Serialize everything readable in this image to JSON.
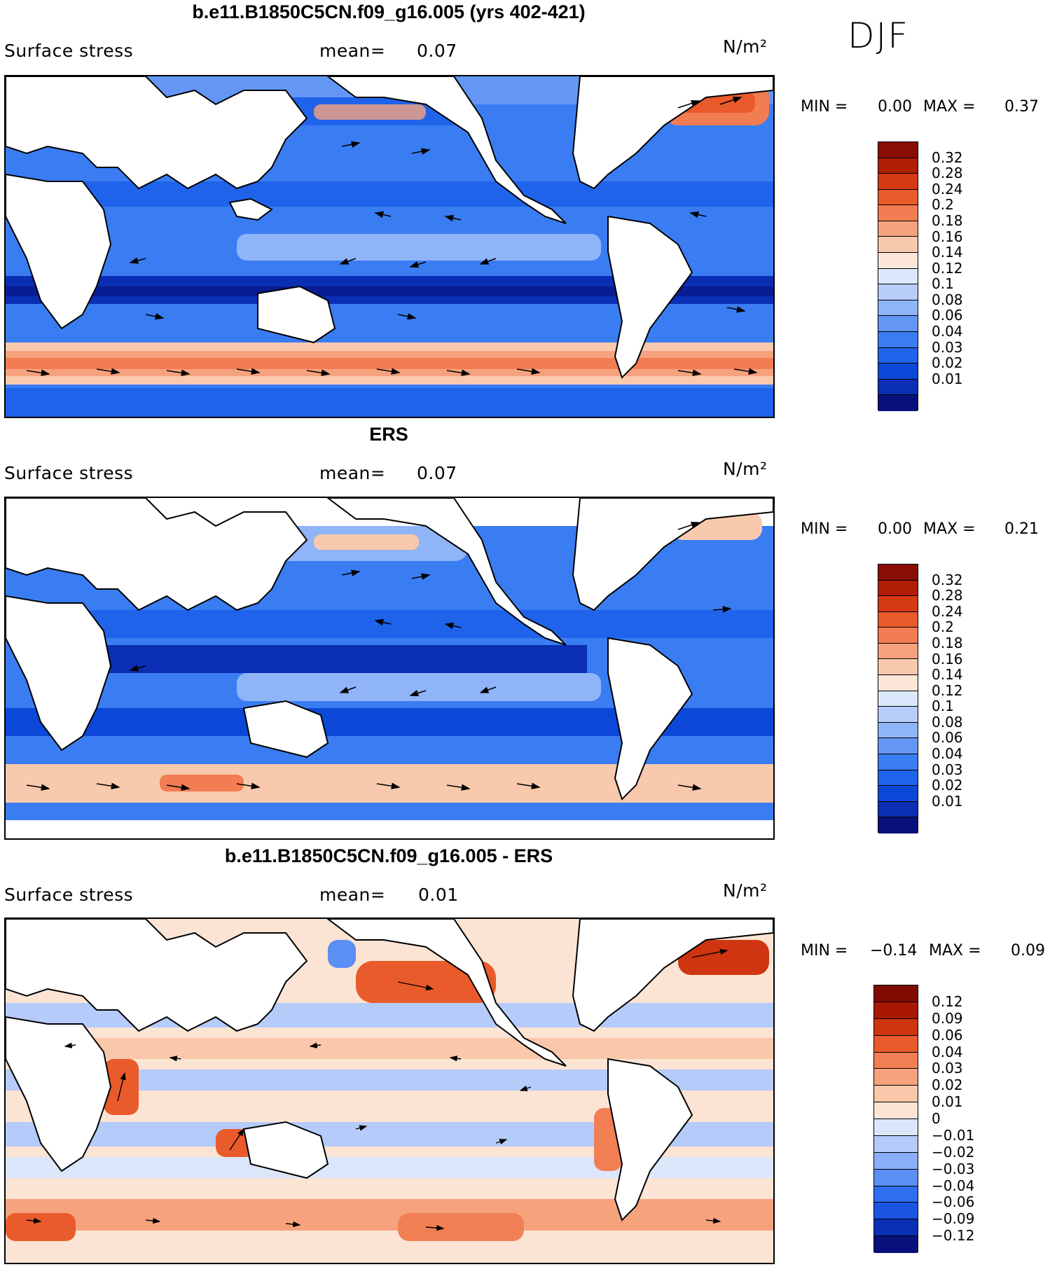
{
  "season": "DJF",
  "colors": {
    "abs_scale": [
      "#08107a",
      "#0a2fb5",
      "#0c48d8",
      "#1f63ea",
      "#3a7df2",
      "#6396f5",
      "#90b4f8",
      "#b8cdf9",
      "#dce8fb",
      "#fbe6d8",
      "#f9c9ad",
      "#f6a27e",
      "#f27d52",
      "#ea5a2a",
      "#d63a12",
      "#b21d06",
      "#8a0d03"
    ],
    "diff_scale": [
      "#08107a",
      "#0a2fb5",
      "#1b55e4",
      "#2f6ef0",
      "#5b8ff4",
      "#8aaef7",
      "#b5cbf9",
      "#dbe6fb",
      "#fbe4d3",
      "#f9c7a9",
      "#f6a37d",
      "#f27f54",
      "#ea5b2b",
      "#cf3510",
      "#a81804",
      "#7f0b02"
    ],
    "land": "#ffffff"
  },
  "panels": [
    {
      "title": "b.e11.B1850C5CN.f09_g16.005 (yrs 402-421)",
      "variable": "Surface stress",
      "mean_label": "mean=",
      "mean": "0.07",
      "units": "N/m²",
      "min_label": "MIN =",
      "min": "0.00",
      "max_label": "MAX =",
      "max": "0.37",
      "scale": "abs"
    },
    {
      "title": "ERS",
      "variable": "Surface stress",
      "mean_label": "mean=",
      "mean": "0.07",
      "units": "N/m²",
      "min_label": "MIN =",
      "min": "0.00",
      "max_label": "MAX =",
      "max": "0.21",
      "scale": "abs"
    },
    {
      "title": "b.e11.B1850C5CN.f09_g16.005 - ERS",
      "variable": "Surface stress",
      "mean_label": "mean=",
      "mean": "0.01",
      "units": "N/m²",
      "min_label": "MIN =",
      "min": "−0.14",
      "max_label": "MAX =",
      "max": "0.09",
      "scale": "diff"
    }
  ],
  "colorbars": [
    {
      "ticks": [
        "0.32",
        "0.28",
        "0.24",
        "0.2",
        "0.18",
        "0.16",
        "0.14",
        "0.12",
        "0.1",
        "0.08",
        "0.06",
        "0.04",
        "0.03",
        "0.02",
        "0.01"
      ]
    },
    {
      "ticks": [
        "0.32",
        "0.28",
        "0.24",
        "0.2",
        "0.18",
        "0.16",
        "0.14",
        "0.12",
        "0.1",
        "0.08",
        "0.06",
        "0.04",
        "0.03",
        "0.02",
        "0.01"
      ]
    },
    {
      "ticks": [
        "0.12",
        "0.09",
        "0.06",
        "0.04",
        "0.03",
        "0.02",
        "0.01",
        "0",
        "−0.01",
        "−0.02",
        "−0.03",
        "−0.04",
        "−0.06",
        "−0.09",
        "−0.12"
      ]
    }
  ]
}
